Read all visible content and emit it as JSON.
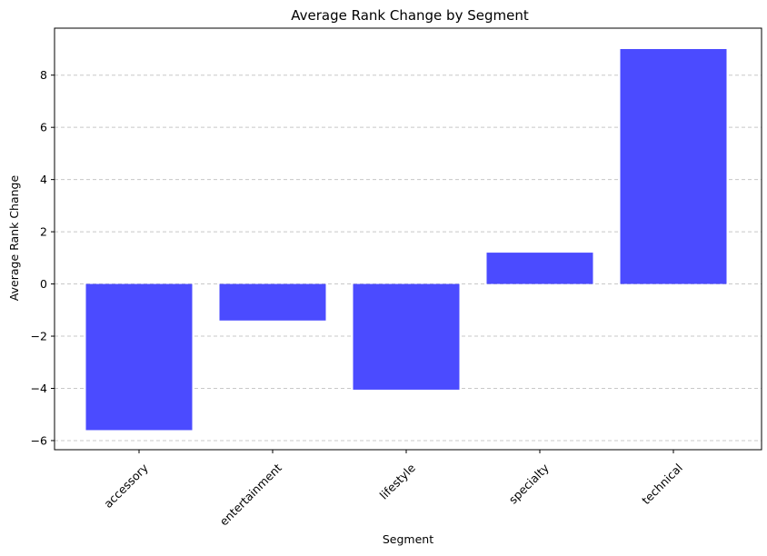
{
  "chart_data": {
    "type": "bar",
    "title": "Average Rank Change by Segment",
    "xlabel": "Segment",
    "ylabel": "Average Rank Change",
    "categories": [
      "accessory",
      "entertainment",
      "lifestyle",
      "specialty",
      "technical"
    ],
    "values": [
      -5.6,
      -1.4,
      -4.05,
      1.2,
      9.0
    ],
    "ylim": [
      -6.35,
      9.8
    ],
    "yticks": [
      -6,
      -4,
      -2,
      0,
      2,
      4,
      6,
      8
    ],
    "ytick_labels": [
      "−6",
      "−4",
      "−2",
      "0",
      "2",
      "4",
      "6",
      "8"
    ],
    "grid": "y-dashed",
    "bar_color": "#4b4bff",
    "grid_color": "#c8c8c8"
  }
}
